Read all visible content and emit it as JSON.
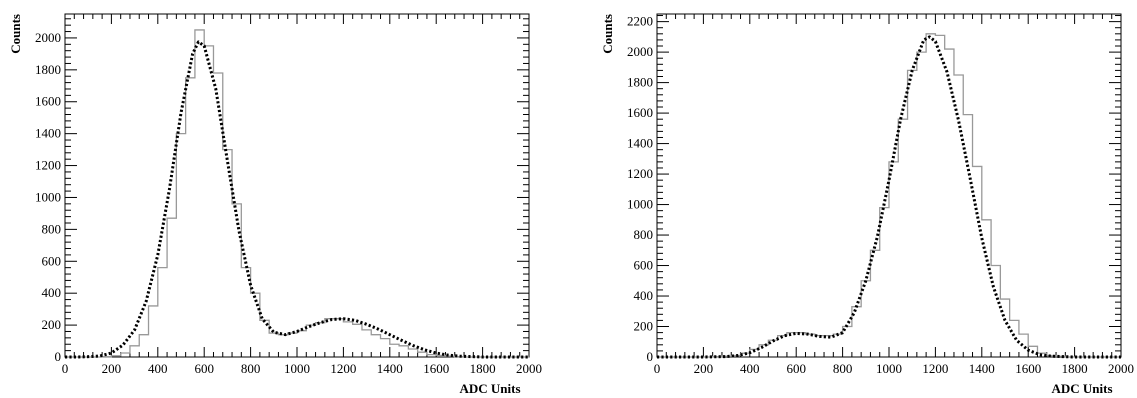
{
  "chart_data": [
    {
      "type": "line",
      "title": "",
      "xlabel": "ADC Units",
      "ylabel": "Counts",
      "xlim": [
        0,
        2000
      ],
      "ylim": [
        0,
        2150
      ],
      "xticks": [
        0,
        200,
        400,
        600,
        800,
        1000,
        1200,
        1400,
        1600,
        1800,
        2000
      ],
      "yticks": [
        0,
        200,
        400,
        600,
        800,
        1000,
        1200,
        1400,
        1600,
        1800,
        2000
      ],
      "grid": false,
      "bin_width": 40,
      "series": [
        {
          "style": "histogram",
          "color": "#999999",
          "x": [
            0,
            40,
            80,
            120,
            160,
            200,
            240,
            280,
            320,
            360,
            400,
            440,
            480,
            520,
            560,
            600,
            640,
            680,
            720,
            760,
            800,
            840,
            880,
            920,
            960,
            1000,
            1040,
            1080,
            1120,
            1160,
            1200,
            1240,
            1280,
            1320,
            1360,
            1400,
            1440,
            1480,
            1520,
            1560,
            1600,
            1640,
            1680,
            1720,
            1760,
            1800,
            1840,
            1880,
            1920,
            1960
          ],
          "y": [
            0,
            0,
            0,
            0,
            2,
            8,
            25,
            70,
            140,
            320,
            560,
            870,
            1400,
            1750,
            2050,
            1950,
            1780,
            1300,
            960,
            560,
            400,
            230,
            150,
            140,
            150,
            165,
            200,
            215,
            240,
            240,
            220,
            205,
            170,
            140,
            115,
            80,
            70,
            50,
            30,
            15,
            10,
            5,
            2,
            0,
            0,
            0,
            0,
            0,
            0,
            0
          ]
        },
        {
          "style": "dotted-fit",
          "color": "#000000",
          "x": [
            0,
            50,
            100,
            150,
            200,
            250,
            300,
            350,
            400,
            450,
            500,
            550,
            575,
            600,
            650,
            700,
            750,
            800,
            850,
            900,
            950,
            1000,
            1050,
            1100,
            1150,
            1200,
            1250,
            1300,
            1350,
            1400,
            1450,
            1500,
            1550,
            1600,
            1650,
            1700,
            1800,
            1900,
            2000
          ],
          "y": [
            0,
            0,
            2,
            6,
            25,
            75,
            170,
            350,
            640,
            1050,
            1530,
            1900,
            1975,
            1950,
            1680,
            1230,
            790,
            450,
            240,
            155,
            140,
            160,
            190,
            215,
            235,
            240,
            230,
            205,
            175,
            140,
            105,
            72,
            45,
            25,
            12,
            5,
            0,
            0,
            0
          ]
        }
      ]
    },
    {
      "type": "line",
      "title": "",
      "xlabel": "ADC Units",
      "ylabel": "Counts",
      "xlim": [
        0,
        2000
      ],
      "ylim": [
        0,
        2250
      ],
      "xticks": [
        0,
        200,
        400,
        600,
        800,
        1000,
        1200,
        1400,
        1600,
        1800,
        2000
      ],
      "yticks": [
        0,
        200,
        400,
        600,
        800,
        1000,
        1200,
        1400,
        1600,
        1800,
        2000,
        2200
      ],
      "grid": false,
      "bin_width": 40,
      "series": [
        {
          "style": "histogram",
          "color": "#999999",
          "x": [
            0,
            40,
            80,
            120,
            160,
            200,
            240,
            280,
            320,
            360,
            400,
            440,
            480,
            520,
            560,
            600,
            640,
            680,
            720,
            760,
            800,
            840,
            880,
            920,
            960,
            1000,
            1040,
            1080,
            1120,
            1160,
            1200,
            1240,
            1280,
            1320,
            1360,
            1400,
            1440,
            1480,
            1520,
            1560,
            1600,
            1640,
            1680,
            1720,
            1760,
            1800,
            1840,
            1880,
            1920,
            1960
          ],
          "y": [
            0,
            0,
            0,
            0,
            0,
            0,
            2,
            5,
            10,
            25,
            50,
            80,
            110,
            140,
            160,
            160,
            150,
            140,
            140,
            150,
            200,
            330,
            500,
            700,
            980,
            1280,
            1560,
            1880,
            2000,
            2120,
            2110,
            2020,
            1850,
            1590,
            1250,
            900,
            600,
            380,
            240,
            150,
            70,
            25,
            10,
            5,
            0,
            0,
            0,
            0,
            0,
            0
          ]
        },
        {
          "style": "dotted-fit",
          "color": "#000000",
          "x": [
            0,
            100,
            200,
            300,
            350,
            400,
            450,
            500,
            550,
            600,
            650,
            700,
            750,
            800,
            850,
            900,
            950,
            1000,
            1050,
            1100,
            1150,
            1175,
            1200,
            1250,
            1300,
            1350,
            1400,
            1450,
            1500,
            1550,
            1600,
            1650,
            1700,
            1800,
            1900,
            2000
          ],
          "y": [
            0,
            0,
            0,
            3,
            10,
            28,
            62,
            105,
            140,
            155,
            150,
            135,
            130,
            160,
            290,
            500,
            790,
            1160,
            1560,
            1880,
            2080,
            2100,
            2070,
            1870,
            1550,
            1170,
            780,
            460,
            240,
            110,
            45,
            15,
            5,
            0,
            0,
            0
          ]
        }
      ]
    }
  ]
}
